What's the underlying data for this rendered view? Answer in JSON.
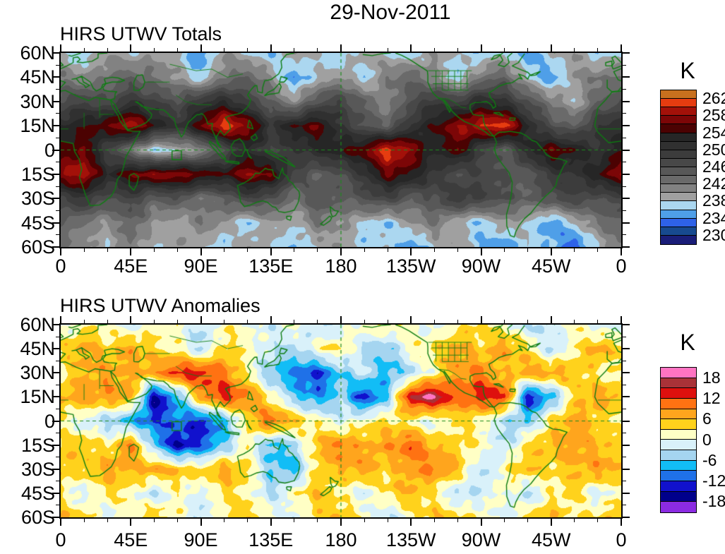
{
  "title": "29-Nov-2011",
  "style": {
    "background": "#ffffff",
    "frame_color": "#000000",
    "coastline_color": "#0e7d12",
    "grid_dash_color": "#1d8a1d"
  },
  "chart_data": [
    {
      "type": "heatmap",
      "title": "HIRS UTWV Totals",
      "units": "K",
      "x_tick_labels": [
        "0",
        "45E",
        "90E",
        "135E",
        "180",
        "135W",
        "90W",
        "45W",
        "0"
      ],
      "y_tick_labels": [
        "60N",
        "45N",
        "30N",
        "15N",
        "0",
        "15S",
        "30S",
        "45S",
        "60S"
      ],
      "lon_deg": [
        0,
        15,
        30,
        45,
        60,
        75,
        90,
        105,
        120,
        135,
        150,
        165,
        180,
        195,
        210,
        225,
        240,
        255,
        270,
        285,
        300,
        315,
        330,
        345,
        360
      ],
      "lat_deg": [
        60,
        45,
        30,
        15,
        0,
        -15,
        -30,
        -45,
        -60
      ],
      "levels": {
        "min": 228,
        "max": 264,
        "step": 2
      },
      "colorbar_tick_labels": [
        "262",
        "258",
        "254",
        "250",
        "246",
        "242",
        "238",
        "234",
        "230"
      ],
      "colors_low_to_high": [
        "#1a1d78",
        "#174a8f",
        "#2e62e8",
        "#4f9fe8",
        "#abd7f0",
        "#a0a0a0",
        "#828282",
        "#6a6a6a",
        "#585858",
        "#484848",
        "#3c3c3c",
        "#303030",
        "#262626",
        "#4b0202",
        "#7c0607",
        "#a31109",
        "#e63c10",
        "#c8701e"
      ],
      "values_k": [
        [
          238,
          236,
          240,
          238,
          240,
          238,
          234,
          240,
          238,
          236,
          240,
          238,
          236,
          240,
          238,
          236,
          240,
          238,
          236,
          238,
          234,
          238,
          240,
          236,
          238
        ],
        [
          242,
          240,
          242,
          244,
          242,
          240,
          236,
          242,
          244,
          240,
          234,
          238,
          240,
          236,
          242,
          244,
          240,
          236,
          242,
          244,
          238,
          234,
          240,
          242,
          242
        ],
        [
          246,
          248,
          246,
          250,
          248,
          246,
          250,
          252,
          248,
          244,
          240,
          246,
          248,
          244,
          240,
          246,
          250,
          248,
          252,
          250,
          246,
          242,
          238,
          244,
          246
        ],
        [
          252,
          254,
          256,
          260,
          254,
          250,
          256,
          262,
          258,
          250,
          254,
          256,
          250,
          246,
          244,
          250,
          254,
          258,
          260,
          262,
          252,
          246,
          244,
          250,
          252
        ],
        [
          254,
          256,
          248,
          242,
          236,
          238,
          240,
          246,
          252,
          248,
          250,
          252,
          254,
          256,
          262,
          258,
          252,
          256,
          248,
          244,
          252,
          256,
          254,
          250,
          254
        ],
        [
          258,
          260,
          252,
          256,
          258,
          258,
          256,
          254,
          258,
          256,
          248,
          244,
          246,
          250,
          256,
          254,
          250,
          246,
          248,
          246,
          244,
          250,
          250,
          254,
          258
        ],
        [
          248,
          250,
          246,
          248,
          244,
          246,
          242,
          244,
          248,
          246,
          242,
          246,
          244,
          246,
          248,
          244,
          246,
          250,
          248,
          246,
          244,
          246,
          248,
          246,
          248
        ],
        [
          244,
          242,
          240,
          244,
          240,
          238,
          242,
          240,
          236,
          240,
          238,
          242,
          240,
          238,
          236,
          240,
          242,
          238,
          236,
          240,
          238,
          234,
          238,
          242,
          244
        ],
        [
          242,
          240,
          238,
          242,
          238,
          240,
          238,
          236,
          240,
          238,
          236,
          238,
          240,
          236,
          238,
          234,
          238,
          240,
          236,
          234,
          238,
          236,
          232,
          238,
          242
        ]
      ]
    },
    {
      "type": "heatmap",
      "title": "HIRS UTWV Anomalies",
      "units": "K",
      "x_tick_labels": [
        "0",
        "45E",
        "90E",
        "135E",
        "180",
        "135W",
        "90W",
        "45W",
        "0"
      ],
      "y_tick_labels": [
        "60N",
        "45N",
        "30N",
        "15N",
        "0",
        "15S",
        "30S",
        "45S",
        "60S"
      ],
      "lon_deg": [
        0,
        15,
        30,
        45,
        60,
        75,
        90,
        105,
        120,
        135,
        150,
        165,
        180,
        195,
        210,
        225,
        240,
        255,
        270,
        285,
        300,
        315,
        330,
        345,
        360
      ],
      "lat_deg": [
        60,
        45,
        30,
        15,
        0,
        -15,
        -30,
        -45,
        -60
      ],
      "levels": {
        "min": -21,
        "max": 21,
        "step": 3
      },
      "colorbar_tick_labels": [
        "18",
        "12",
        "6",
        "0",
        "-6",
        "-12",
        "-18"
      ],
      "colors_low_to_high": [
        "#8b2be2",
        "#00008b",
        "#1111cd",
        "#1f71e8",
        "#12bdf6",
        "#a5d5f0",
        "#d9f1fa",
        "#ffffc5",
        "#ffd21c",
        "#ffa51d",
        "#ff7212",
        "#de100e",
        "#a93238",
        "#ff74c2"
      ],
      "values_k": [
        [
          -2,
          2,
          1,
          -2,
          2,
          1,
          -4,
          2,
          1,
          -2,
          2,
          -4,
          -2,
          2,
          4,
          1,
          -2,
          2,
          4,
          2,
          -4,
          -2,
          2,
          -2,
          -2
        ],
        [
          4,
          8,
          4,
          8,
          4,
          2,
          -4,
          4,
          2,
          -2,
          -4,
          2,
          4,
          -4,
          -6,
          2,
          4,
          8,
          4,
          8,
          4,
          -4,
          2,
          8,
          4
        ],
        [
          2,
          6,
          8,
          6,
          8,
          14,
          14,
          10,
          2,
          -6,
          -10,
          -13,
          -6,
          -2,
          -8,
          -4,
          2,
          8,
          10,
          4,
          8,
          8,
          6,
          2,
          2
        ],
        [
          6,
          8,
          8,
          8,
          -17,
          -8,
          8,
          14,
          10,
          2,
          -6,
          -10,
          -4,
          -14,
          -6,
          16,
          19,
          10,
          14,
          14,
          -15,
          -8,
          4,
          8,
          6
        ],
        [
          2,
          -2,
          -4,
          -8,
          -12,
          -10,
          -14,
          -8,
          4,
          12,
          6,
          2,
          -2,
          2,
          4,
          2,
          -2,
          4,
          2,
          -4,
          -6,
          4,
          8,
          4,
          2
        ],
        [
          4,
          6,
          2,
          10,
          -6,
          -16,
          -12,
          -6,
          2,
          -8,
          -4,
          6,
          10,
          6,
          8,
          12,
          6,
          4,
          2,
          -4,
          4,
          6,
          8,
          6,
          4
        ],
        [
          6,
          4,
          8,
          6,
          8,
          6,
          4,
          8,
          4,
          -6,
          -8,
          4,
          6,
          8,
          4,
          8,
          10,
          6,
          -4,
          2,
          6,
          4,
          6,
          8,
          6
        ],
        [
          2,
          -2,
          4,
          2,
          -4,
          2,
          -2,
          4,
          2,
          -4,
          2,
          6,
          2,
          -2,
          4,
          6,
          2,
          -4,
          -2,
          2,
          -4,
          2,
          4,
          -2,
          2
        ],
        [
          6,
          4,
          -2,
          2,
          6,
          2,
          -4,
          2,
          6,
          2,
          -2,
          4,
          6,
          2,
          -4,
          2,
          6,
          4,
          2,
          -2,
          4,
          6,
          2,
          4,
          6
        ]
      ]
    }
  ]
}
